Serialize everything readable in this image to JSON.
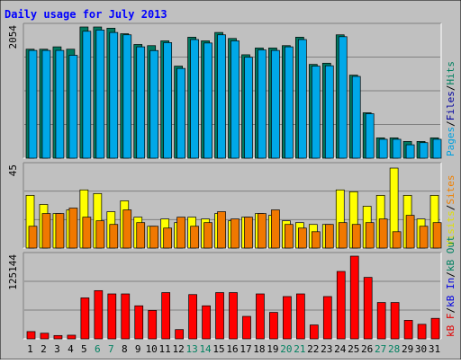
{
  "chart_data": [
    {
      "type": "bar",
      "title": "Daily usage for July 2013",
      "categories": [
        "1",
        "2",
        "3",
        "4",
        "5",
        "6",
        "7",
        "8",
        "9",
        "10",
        "11",
        "12",
        "13",
        "14",
        "15",
        "16",
        "17",
        "18",
        "19",
        "20",
        "21",
        "22",
        "23",
        "24",
        "25",
        "26",
        "27",
        "28",
        "29",
        "30",
        "31"
      ],
      "weekend_days": [
        "6",
        "7",
        "13",
        "14",
        "20",
        "21",
        "27",
        "28"
      ],
      "ymax_label": "2054",
      "ylim": [
        0,
        2054
      ],
      "legend": [
        {
          "label": "Pages",
          "color": "#00a0e0"
        },
        {
          "label": "Files",
          "color": "#0000a0"
        },
        {
          "label": "Hits",
          "color": "#008060"
        }
      ],
      "series": [
        {
          "name": "Hits",
          "color": "#007860",
          "values": [
            1706,
            1706,
            1743,
            1706,
            2054,
            2054,
            2035,
            1948,
            1780,
            1762,
            1837,
            1441,
            1894,
            1837,
            1968,
            1874,
            1619,
            1725,
            1725,
            1762,
            1894,
            1468,
            1487,
            1931,
            1300,
            711,
            318,
            318,
            262,
            262,
            318
          ]
        },
        {
          "name": "Files",
          "color": "#00a8e8",
          "values": [
            1687,
            1687,
            1687,
            1611,
            1987,
            2006,
            1968,
            1931,
            1743,
            1685,
            1809,
            1405,
            1857,
            1803,
            1931,
            1837,
            1580,
            1695,
            1687,
            1743,
            1857,
            1441,
            1447,
            1902,
            1280,
            696,
            296,
            296,
            210,
            243,
            296
          ]
        }
      ]
    },
    {
      "type": "bar",
      "ymax_label": "45",
      "ylim": [
        0,
        45
      ],
      "legend": [
        {
          "label": "Visits",
          "color": "#e0e000"
        },
        {
          "label": "Sites",
          "color": "#f08000"
        }
      ],
      "series": [
        {
          "name": "Visits",
          "color": "#ffff00",
          "values": [
            29,
            24,
            19,
            21,
            32,
            30,
            20,
            26,
            17,
            12,
            16,
            14,
            17,
            16,
            19,
            15,
            17,
            19,
            18,
            15,
            14,
            13,
            13,
            32,
            31,
            23,
            29,
            44,
            29,
            16,
            29
          ]
        },
        {
          "name": "Sites",
          "color": "#f07800",
          "values": [
            12,
            19,
            19,
            22,
            17,
            15,
            13,
            21,
            14,
            12,
            11,
            17,
            12,
            14,
            20,
            16,
            17,
            19,
            21,
            13,
            11,
            9,
            13,
            14,
            13,
            14,
            16,
            9,
            18,
            12,
            14
          ]
        }
      ]
    },
    {
      "type": "bar",
      "ymax_label": "125144",
      "ylim": [
        0,
        125144
      ],
      "legend": [
        {
          "label": "kB F",
          "color": "#e00000"
        },
        {
          "label": "kB In",
          "color": "#0000e0"
        },
        {
          "label": "kB Out",
          "color": "#008060"
        }
      ],
      "series": [
        {
          "name": "kB F",
          "color": "#ff0000",
          "values": [
            11000,
            8500,
            5000,
            5500,
            62000,
            73000,
            68000,
            68000,
            50000,
            43000,
            70000,
            14000,
            67000,
            50000,
            70000,
            70000,
            34000,
            68000,
            40000,
            64000,
            68000,
            21000,
            64000,
            102000,
            125144,
            93000,
            55000,
            55000,
            28000,
            22000,
            31000
          ]
        }
      ]
    }
  ]
}
